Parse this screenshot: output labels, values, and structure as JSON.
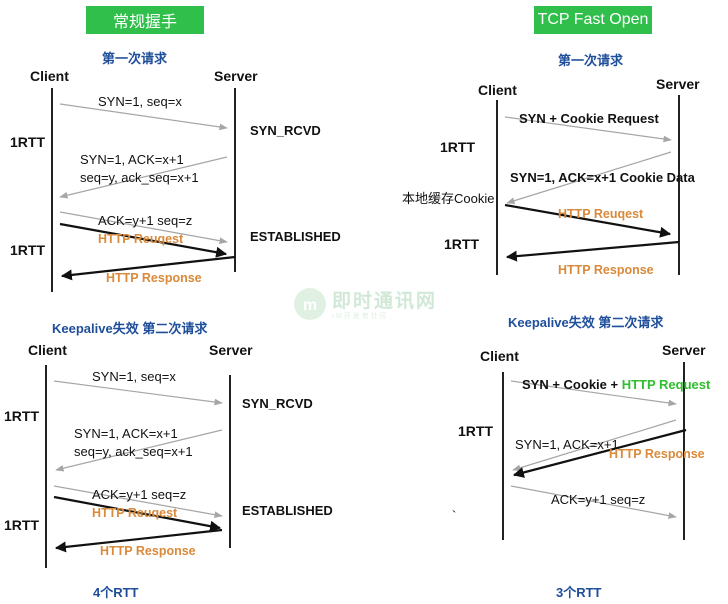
{
  "left_badge": "常规握手",
  "right_badge": "TCP Fast Open",
  "tl": {
    "heading": "第一次请求",
    "client": "Client",
    "server": "Server",
    "rtt1": "1RTT",
    "rtt2": "1RTT",
    "syn": "SYN=1, seq=x",
    "syn_rcvd": "SYN_RCVD",
    "synack_1": "SYN=1, ACK=x+1",
    "synack_2": "seq=y, ack_seq=x+1",
    "ack": "ACK=y+1  seq=z",
    "http_req": "HTTP Reuqest",
    "established": "ESTABLISHED",
    "http_resp": "HTTP Response"
  },
  "bl": {
    "heading": "Keepalive失效 第二次请求",
    "client": "Client",
    "server": "Server",
    "rtt1": "1RTT",
    "rtt2": "1RTT",
    "syn": "SYN=1, seq=x",
    "syn_rcvd": "SYN_RCVD",
    "synack_1": "SYN=1, ACK=x+1",
    "synack_2": "seq=y, ack_seq=x+1",
    "ack": "ACK=y+1  seq=z",
    "http_req": "HTTP Reuqest",
    "established": "ESTABLISHED",
    "http_resp": "HTTP Response",
    "total": "4个RTT"
  },
  "tr": {
    "heading": "第一次请求",
    "client": "Client",
    "server": "Server",
    "rtt1": "1RTT",
    "rtt2": "1RTT",
    "syn": "SYN + Cookie Request",
    "synack": "SYN=1, ACK=x+1 Cookie Data",
    "local_cache": "本地缓存Cookie",
    "http_req": "HTTP Reuqest",
    "http_resp": "HTTP Response"
  },
  "br": {
    "heading": "Keepalive失效 第二次请求",
    "client": "Client",
    "server": "Server",
    "rtt1": "1RTT",
    "syn_a": "SYN + Cookie + ",
    "syn_b": "HTTP Request",
    "synack": "SYN=1, ACK=x+1",
    "http_resp": "HTTP Response",
    "ack": "ACK=y+1  seq=z",
    "stray": "`",
    "total": "3个RTT"
  },
  "watermark": {
    "title": "即时通讯网",
    "subtitle": "IM开发者社区"
  },
  "colors": {
    "badge_green": "#2fbf4a",
    "heading_blue": "#1f4e9a",
    "http_orange": "#d98a3a",
    "gray_arrow": "#a6a6a6",
    "black_arrow": "#111111",
    "highlight_green": "#2fbf2f"
  }
}
